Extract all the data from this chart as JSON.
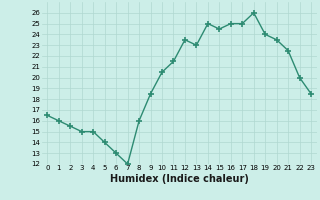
{
  "x": [
    0,
    1,
    2,
    3,
    4,
    5,
    6,
    7,
    8,
    9,
    10,
    11,
    12,
    13,
    14,
    15,
    16,
    17,
    18,
    19,
    20,
    21,
    22,
    23
  ],
  "y": [
    16.5,
    16.0,
    15.5,
    15.0,
    15.0,
    14.0,
    13.0,
    12.0,
    16.0,
    18.5,
    20.5,
    21.5,
    23.5,
    23.0,
    25.0,
    24.5,
    25.0,
    25.0,
    26.0,
    24.0,
    23.5,
    22.5,
    20.0,
    18.5
  ],
  "line_color": "#2d8b72",
  "marker": "+",
  "markersize": 4,
  "linewidth": 1.0,
  "xlabel": "Humidex (Indice chaleur)",
  "ylim": [
    12,
    27
  ],
  "xlim": [
    -0.5,
    23.5
  ],
  "yticks": [
    12,
    13,
    14,
    15,
    16,
    17,
    18,
    19,
    20,
    21,
    22,
    23,
    24,
    25,
    26
  ],
  "xticks": [
    0,
    1,
    2,
    3,
    4,
    5,
    6,
    7,
    8,
    9,
    10,
    11,
    12,
    13,
    14,
    15,
    16,
    17,
    18,
    19,
    20,
    21,
    22,
    23
  ],
  "background_color": "#cceee8",
  "grid_color": "#b0d8d0",
  "xlabel_fontsize": 7,
  "tick_fontsize": 5
}
